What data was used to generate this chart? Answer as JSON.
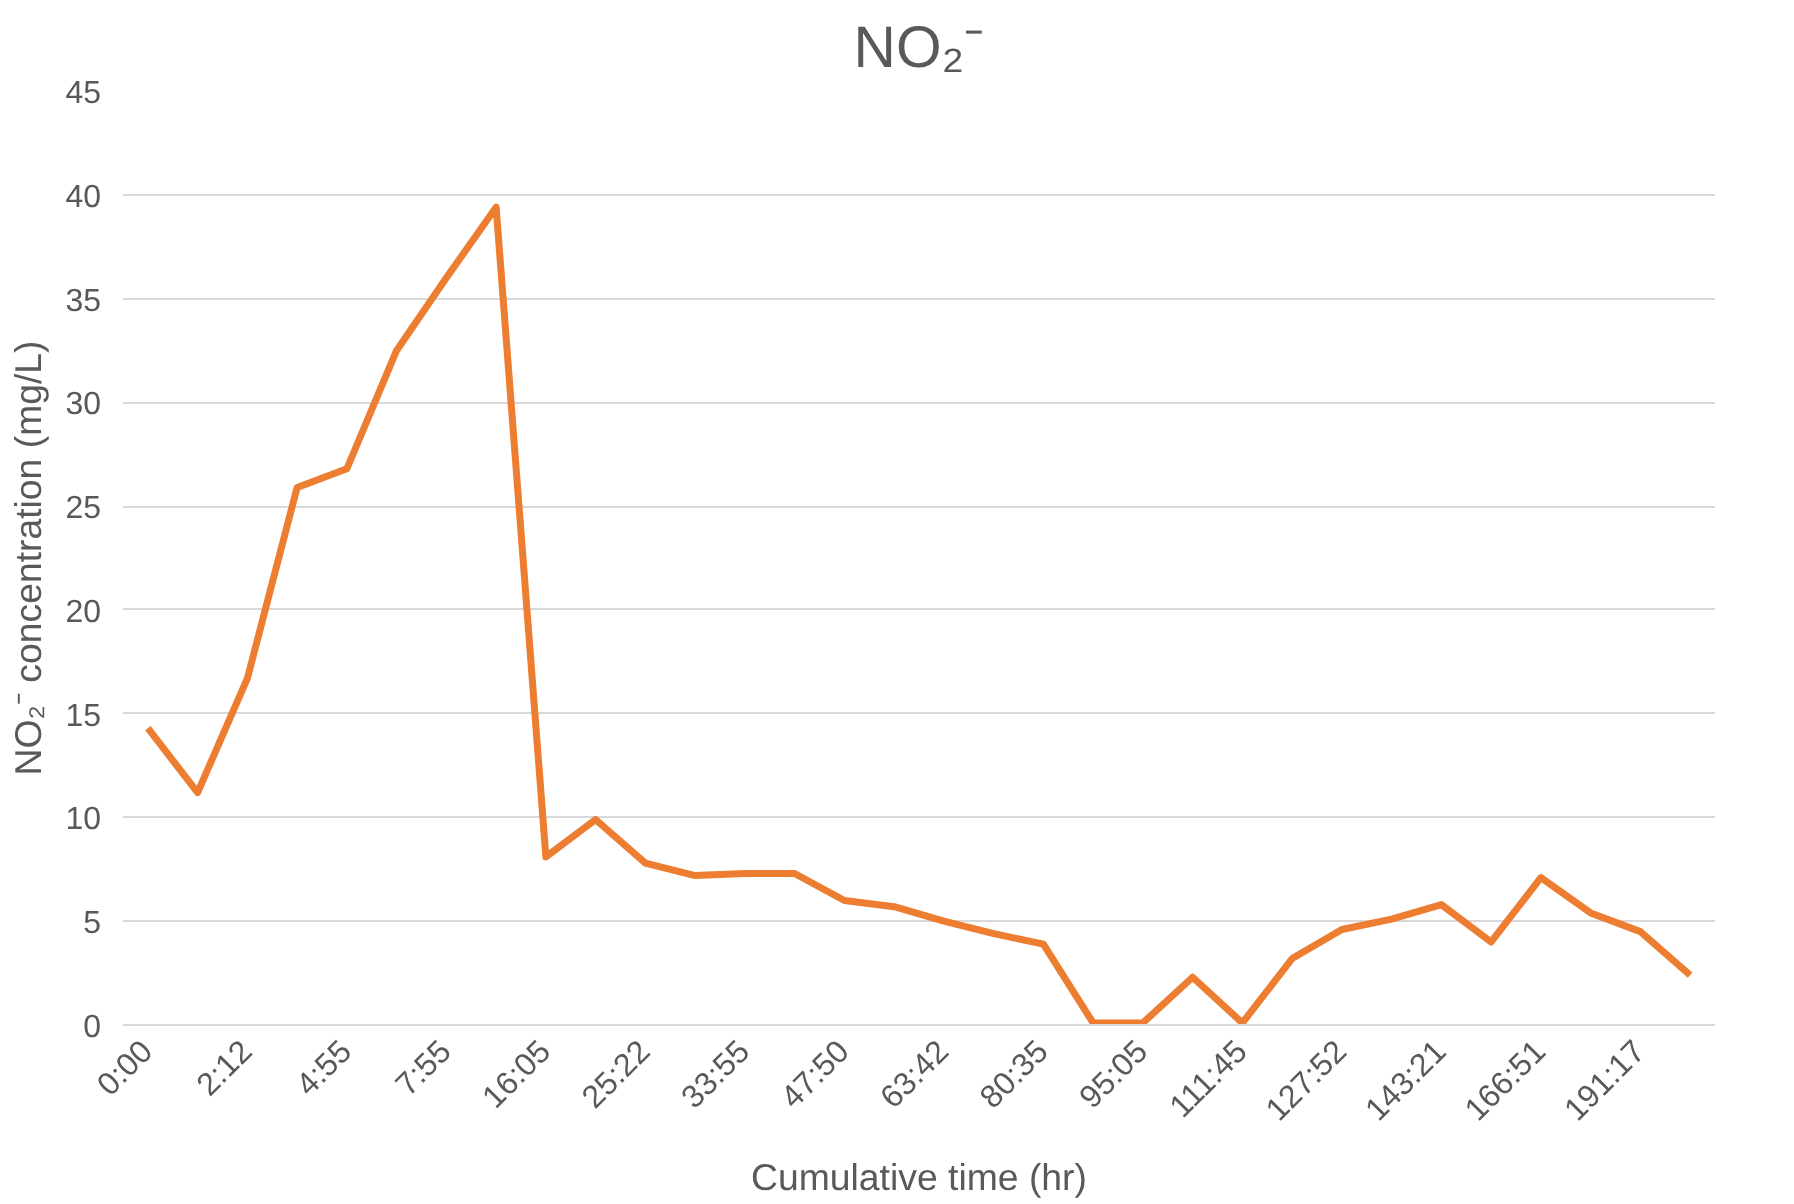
{
  "chart_data": {
    "type": "line",
    "title": "NO₂⁻",
    "xlabel": "Cumulative time (hr)",
    "ylabel": "NO₂⁻ concentration (mg/L)",
    "categories": [
      "0:00",
      null,
      "2:12",
      null,
      "4:55",
      null,
      "7:55",
      null,
      "16:05",
      null,
      "25:22",
      null,
      "33:55",
      null,
      "47:50",
      null,
      "63:42",
      null,
      "80:35",
      null,
      "95:05",
      null,
      "111:45",
      null,
      "127:52",
      null,
      "143:21",
      null,
      "166:51",
      null,
      "191:17",
      null
    ],
    "series": [
      {
        "color": "#ed7d31",
        "values": [
          14.3,
          11.2,
          16.7,
          25.9,
          26.8,
          32.5,
          36.0,
          39.4,
          8.1,
          9.9,
          7.8,
          7.2,
          7.3,
          7.3,
          6.0,
          5.7,
          5.0,
          4.4,
          3.9,
          0.1,
          0.1,
          2.3,
          0.1,
          3.2,
          4.6,
          5.1,
          5.8,
          4.0,
          7.1,
          5.4,
          4.5,
          2.4
        ]
      }
    ],
    "ylim": [
      0,
      45
    ],
    "yticks": [
      0,
      5,
      10,
      15,
      20,
      25,
      30,
      35,
      40,
      45
    ],
    "grid": "y",
    "marker": "none",
    "line_style": "solid"
  }
}
